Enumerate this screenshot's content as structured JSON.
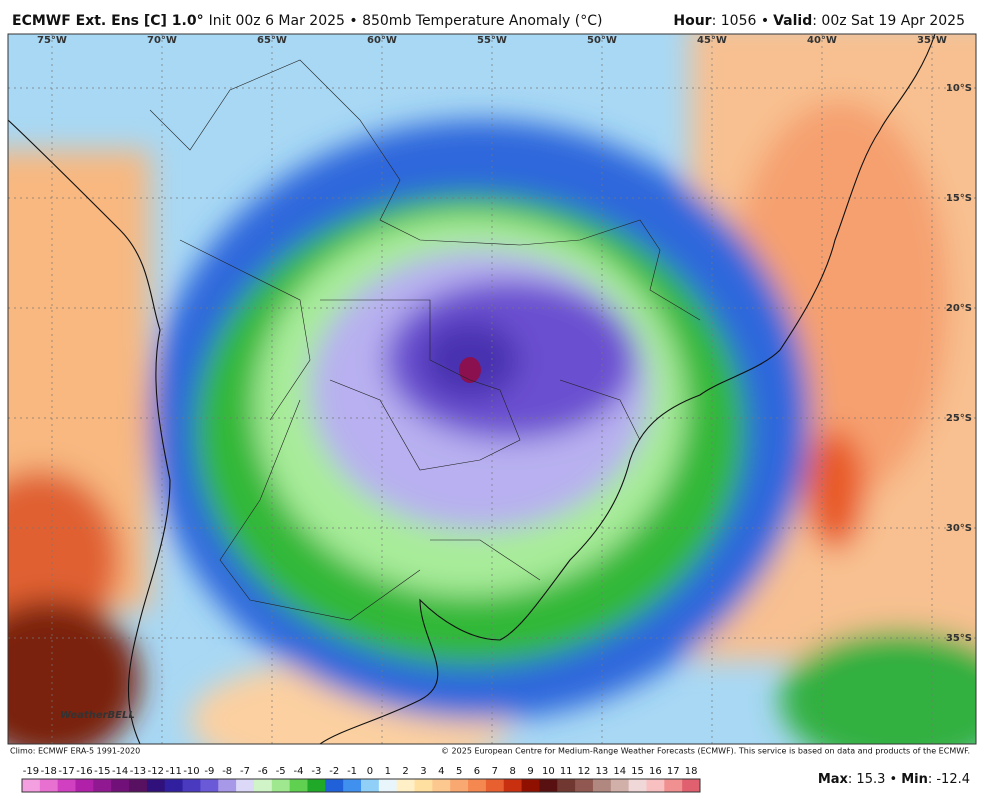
{
  "header": {
    "model": "ECMWF Ext. Ens [C] 1.0°",
    "init": "Init 00z 6 Mar 2025 • 850mb Temperature Anomaly (°C)",
    "hour_label": "Hour",
    "hour_value": ": 1056 •",
    "valid_label": "Valid",
    "valid_value": ": 00z Sat 19 Apr 2025"
  },
  "map": {
    "lon_labels": [
      "75°W",
      "70°W",
      "65°W",
      "60°W",
      "55°W",
      "50°W",
      "45°W",
      "40°W",
      "35°W"
    ],
    "lat_labels": [
      "10°S",
      "15°S",
      "20°S",
      "25°S",
      "30°S",
      "35°S"
    ],
    "logo": "WeatherBELL"
  },
  "footer": {
    "climo": "Climo: ECMWF ERA-5 1991-2020",
    "copyright": "© 2025 European Centre for Medium-Range Weather Forecasts (ECMWF). This service is based on data and products of the ECMWF."
  },
  "colorbar": {
    "labels": [
      "-19",
      "-18",
      "-17",
      "-16",
      "-15",
      "-14",
      "-13",
      "-12",
      "-11",
      "-10",
      "-9",
      "-8",
      "-7",
      "-6",
      "-5",
      "-4",
      "-3",
      "-2",
      "-1",
      "0",
      "1",
      "2",
      "3",
      "4",
      "5",
      "6",
      "7",
      "8",
      "9",
      "10",
      "11",
      "12",
      "13",
      "14",
      "15",
      "16",
      "17",
      "18"
    ],
    "colors": [
      "#f4a0e0",
      "#e870d0",
      "#d040c0",
      "#b020a8",
      "#901890",
      "#701078",
      "#581060",
      "#30107a",
      "#3020a0",
      "#4a3ac0",
      "#6a5ad8",
      "#a898e8",
      "#dcd8f8",
      "#d0f4c8",
      "#a0e890",
      "#60d050",
      "#20a828",
      "#2060d8",
      "#4090f0",
      "#90d0f8",
      "#e8f6fc",
      "#fff0c8",
      "#ffe0a0",
      "#fcc890",
      "#f8a870",
      "#f48850",
      "#e86030",
      "#c83010",
      "#901000",
      "#581010",
      "#703830",
      "#905850",
      "#b08880",
      "#d0b0a8",
      "#f0d8d8",
      "#f8c0c0",
      "#f09090",
      "#e06070"
    ]
  },
  "stats": {
    "max_label": "Max",
    "max_value": ": 15.3 •",
    "min_label": "Min",
    "min_value": ": -12.4"
  }
}
